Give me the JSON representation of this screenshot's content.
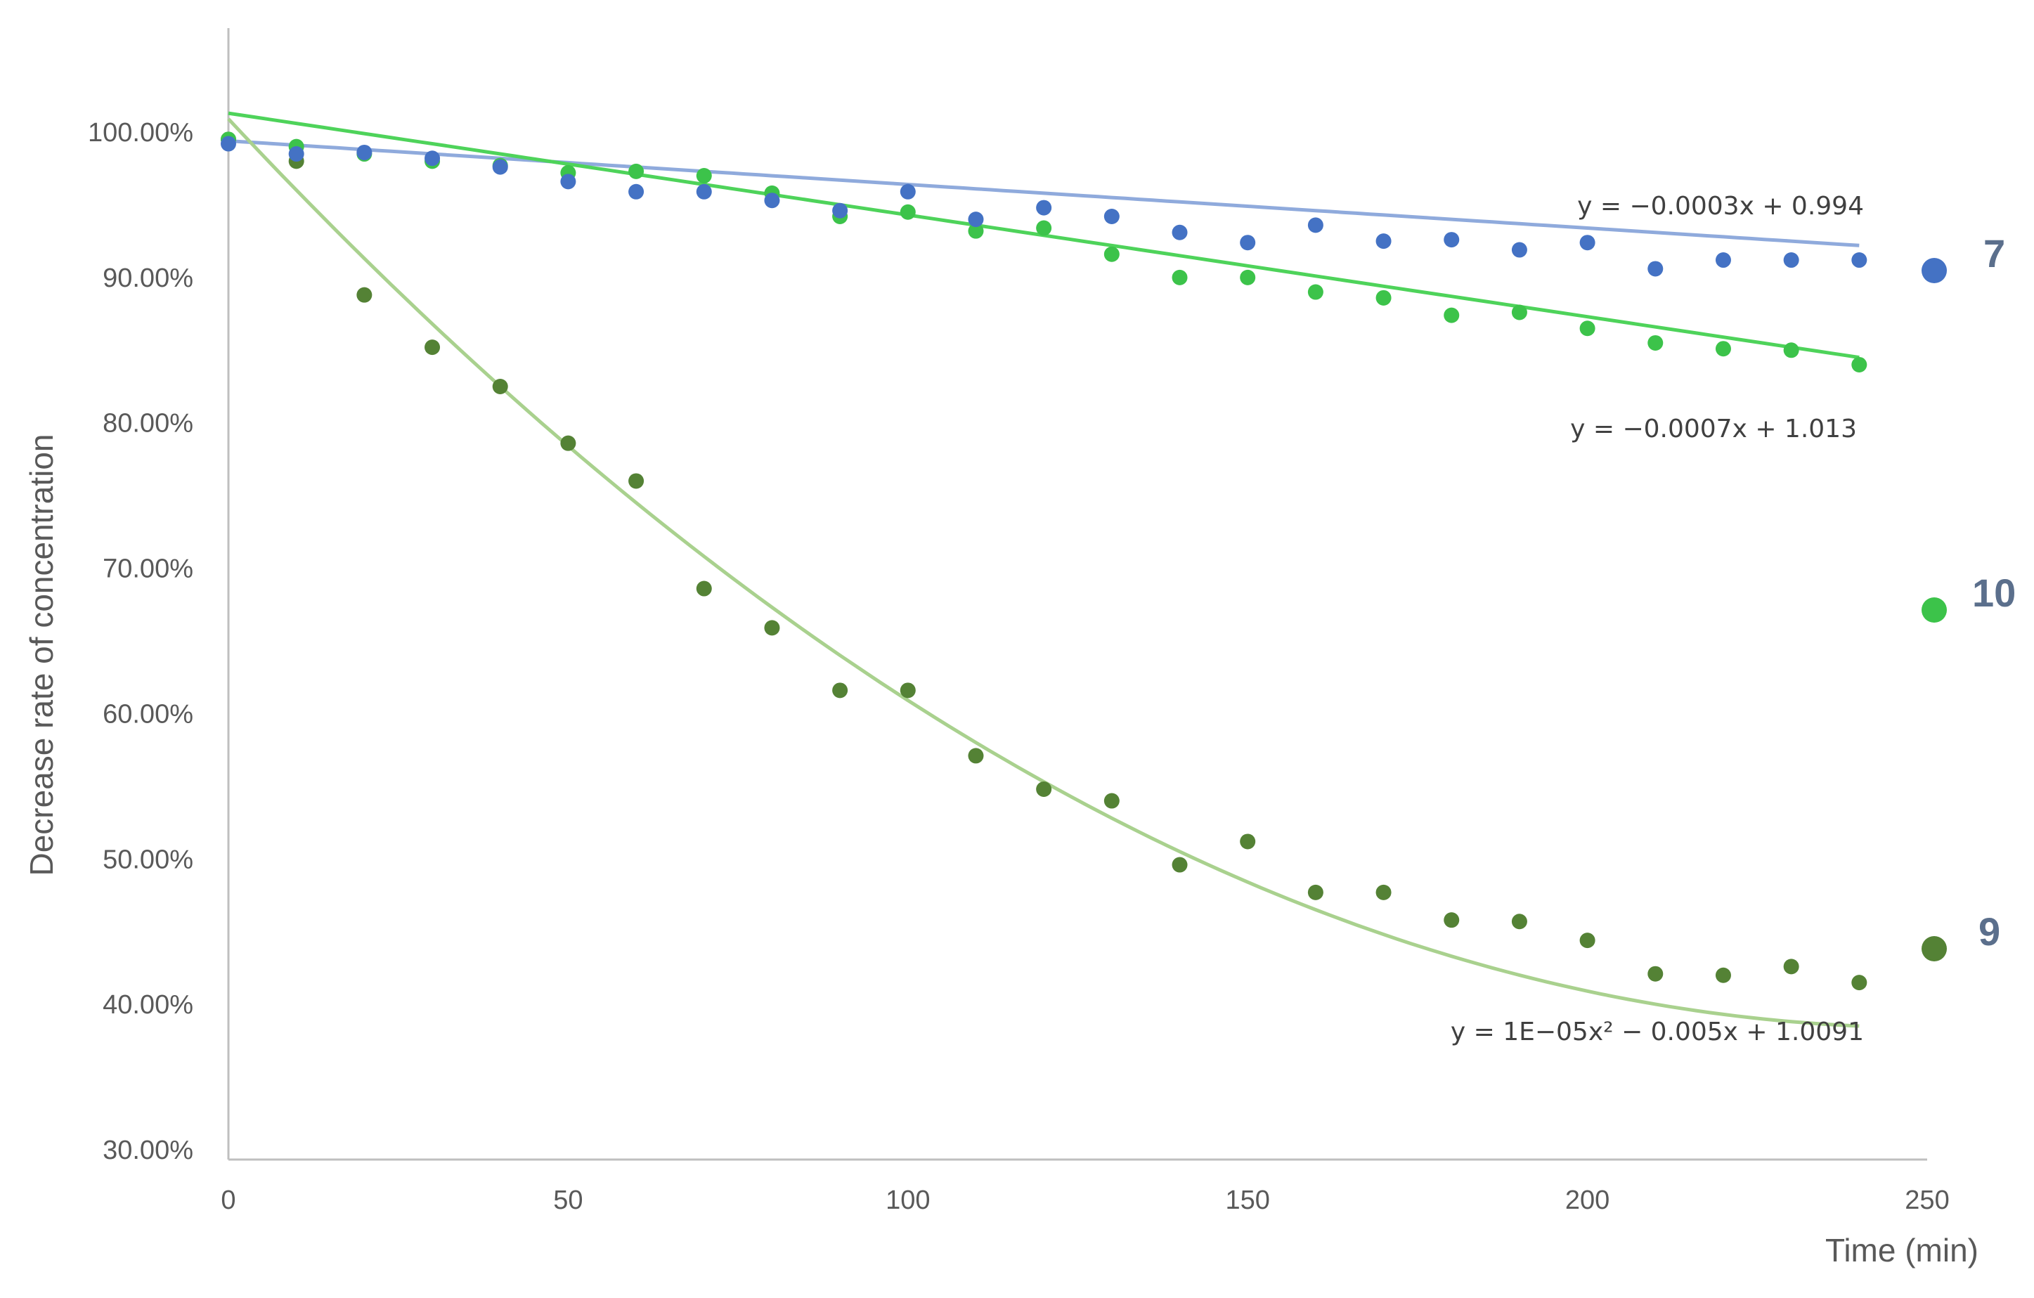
{
  "chart_data": {
    "type": "scatter",
    "title": "",
    "xlabel": "Time (min)",
    "ylabel": "Decrease rate of concentration",
    "xlim": [
      0,
      250
    ],
    "ylim": [
      0.3,
      1.0
    ],
    "x_ticks": [
      0,
      50,
      100,
      150,
      200,
      250
    ],
    "x_tick_labels": [
      "0",
      "50",
      "100",
      "150",
      "200",
      "250"
    ],
    "y_ticks": [
      0.3,
      0.4,
      0.5,
      0.6,
      0.7,
      0.8,
      0.9,
      1.0
    ],
    "y_tick_labels": [
      "30.00%",
      "40.00%",
      "50.00%",
      "60.00%",
      "70.00%",
      "80.00%",
      "90.00%",
      "100.00%"
    ],
    "grid": false,
    "legend": "right",
    "series": [
      {
        "name": "7",
        "color": "#4472c4",
        "trend_color": "#8faadc",
        "trend_type": "linear",
        "trend": {
          "a": 0,
          "b": -0.0003,
          "c": 0.994
        },
        "equation": "y = −0.0003x + 0.994",
        "x": [
          0,
          10,
          20,
          30,
          40,
          50,
          60,
          70,
          80,
          90,
          100,
          110,
          120,
          130,
          140,
          150,
          160,
          170,
          180,
          190,
          200,
          210,
          220,
          230,
          240
        ],
        "y": [
          0.992,
          0.985,
          0.986,
          0.982,
          0.976,
          0.966,
          0.959,
          0.959,
          0.953,
          0.946,
          0.959,
          0.94,
          0.948,
          0.942,
          0.931,
          0.924,
          0.936,
          0.925,
          0.926,
          0.919,
          0.924,
          0.906,
          0.912,
          0.912,
          0.912
        ]
      },
      {
        "name": "10",
        "color": "#3cc34a",
        "trend_color": "#4ed35a",
        "trend_type": "linear",
        "trend": {
          "a": 0,
          "b": -0.0007,
          "c": 1.013
        },
        "equation": "y = −0.0007x + 1.013",
        "x": [
          0,
          10,
          20,
          30,
          40,
          50,
          60,
          70,
          80,
          90,
          100,
          110,
          120,
          130,
          140,
          150,
          160,
          170,
          180,
          190,
          200,
          210,
          220,
          230,
          240
        ],
        "y": [
          0.995,
          0.99,
          0.985,
          0.98,
          0.977,
          0.972,
          0.973,
          0.97,
          0.958,
          0.942,
          0.945,
          0.932,
          0.934,
          0.916,
          0.9,
          0.9,
          0.89,
          0.886,
          0.874,
          0.876,
          0.865,
          0.855,
          0.851,
          0.85,
          0.84
        ]
      },
      {
        "name": "9",
        "color": "#548235",
        "trend_color": "#a9d18e",
        "trend_type": "polynomial",
        "trend": {
          "a": 1e-05,
          "b": -0.005,
          "c": 1.0091
        },
        "equation": "y = 1E−05x² − 0.005x + 1.0091",
        "x": [
          0,
          10,
          20,
          30,
          40,
          50,
          60,
          70,
          80,
          90,
          100,
          110,
          120,
          130,
          140,
          150,
          160,
          170,
          180,
          190,
          200,
          210,
          220,
          230,
          240
        ],
        "y": [
          0.995,
          0.98,
          0.888,
          0.852,
          0.825,
          0.786,
          0.76,
          0.686,
          0.659,
          0.616,
          0.616,
          0.571,
          0.548,
          0.54,
          0.496,
          0.512,
          0.477,
          0.477,
          0.458,
          0.457,
          0.444,
          0.421,
          0.42,
          0.426,
          0.415
        ]
      }
    ]
  }
}
